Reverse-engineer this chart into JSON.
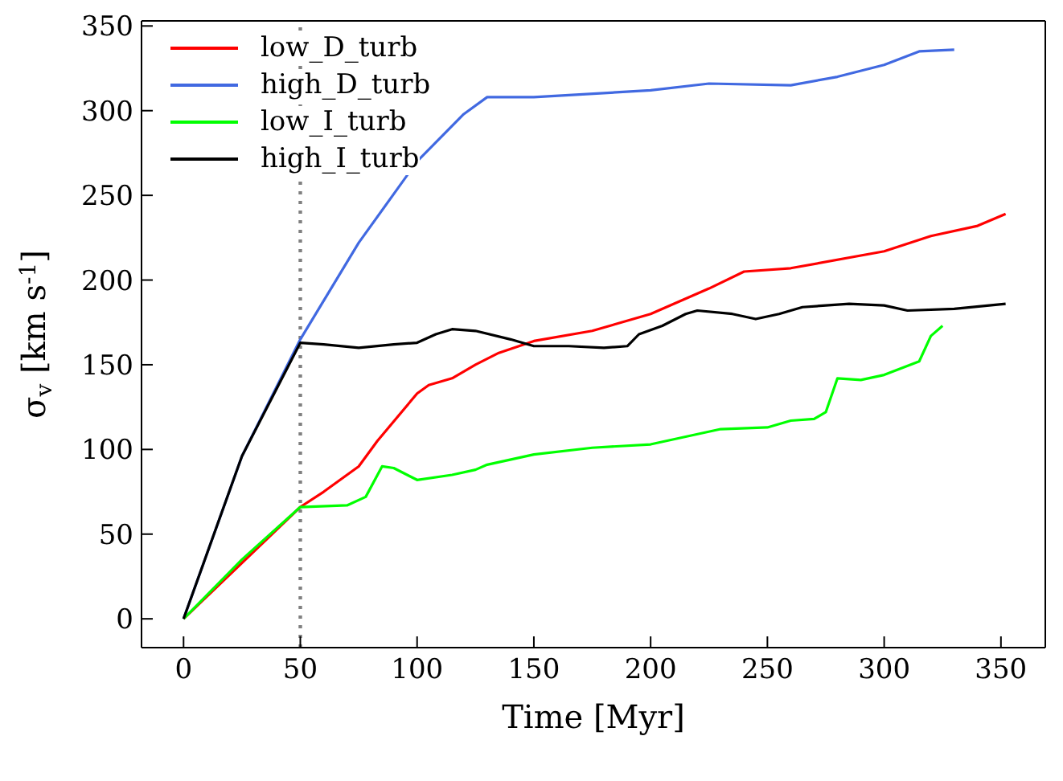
{
  "chart_data": {
    "type": "line",
    "xlabel": "Time [Myr]",
    "ylabel": "σ$_{v}$ [km s$^{-1}$]",
    "xlim": [
      -18,
      369
    ],
    "ylim": [
      -17,
      353
    ],
    "xticks": [
      0,
      50,
      100,
      150,
      200,
      250,
      300,
      350
    ],
    "yticks": [
      0,
      50,
      100,
      150,
      200,
      250,
      300,
      350
    ],
    "grid": false,
    "legend": "top left",
    "marker": "none",
    "line_style": "solid",
    "ref_lines": [
      {
        "axis": "x",
        "value": 50,
        "color": "#808080",
        "line_style": "dotted"
      }
    ],
    "series": [
      {
        "name": "low_D_turb",
        "color": "#ff0000",
        "x": [
          0,
          50,
          60,
          75,
          83,
          100,
          105,
          115,
          125,
          135,
          150,
          175,
          200,
          225,
          240,
          260,
          300,
          320,
          340,
          352
        ],
        "values": [
          0,
          66,
          75,
          90,
          105,
          133,
          138,
          142,
          150,
          157,
          164,
          170,
          180,
          195,
          205,
          207,
          217,
          226,
          232,
          239
        ]
      },
      {
        "name": "high_D_turb",
        "color": "#4169e1",
        "x": [
          0,
          25,
          50,
          75,
          100,
          120,
          130,
          150,
          200,
          225,
          260,
          280,
          300,
          315,
          330
        ],
        "values": [
          0,
          96,
          165,
          222,
          270,
          298,
          308,
          308,
          312,
          316,
          315,
          320,
          327,
          335,
          336
        ]
      },
      {
        "name": "low_I_turb",
        "color": "#00ff00",
        "x": [
          0,
          25,
          50,
          70,
          78,
          85,
          90,
          100,
          115,
          125,
          130,
          150,
          175,
          200,
          230,
          250,
          260,
          270,
          275,
          280,
          290,
          300,
          315,
          320,
          325
        ],
        "values": [
          0,
          35,
          66,
          67,
          72,
          90,
          89,
          82,
          85,
          88,
          91,
          97,
          101,
          103,
          112,
          113,
          117,
          118,
          122,
          142,
          141,
          144,
          152,
          167,
          173
        ]
      },
      {
        "name": "high_I_turb",
        "color": "#000000",
        "x": [
          0,
          25,
          50,
          60,
          75,
          90,
          100,
          108,
          115,
          125,
          140,
          150,
          165,
          180,
          190,
          195,
          205,
          215,
          220,
          235,
          245,
          255,
          265,
          285,
          300,
          310,
          330,
          352
        ],
        "values": [
          0,
          96,
          163,
          162,
          160,
          162,
          163,
          168,
          171,
          170,
          165,
          161,
          161,
          160,
          161,
          168,
          173,
          180,
          182,
          180,
          177,
          180,
          184,
          186,
          185,
          182,
          183,
          186
        ]
      }
    ]
  }
}
